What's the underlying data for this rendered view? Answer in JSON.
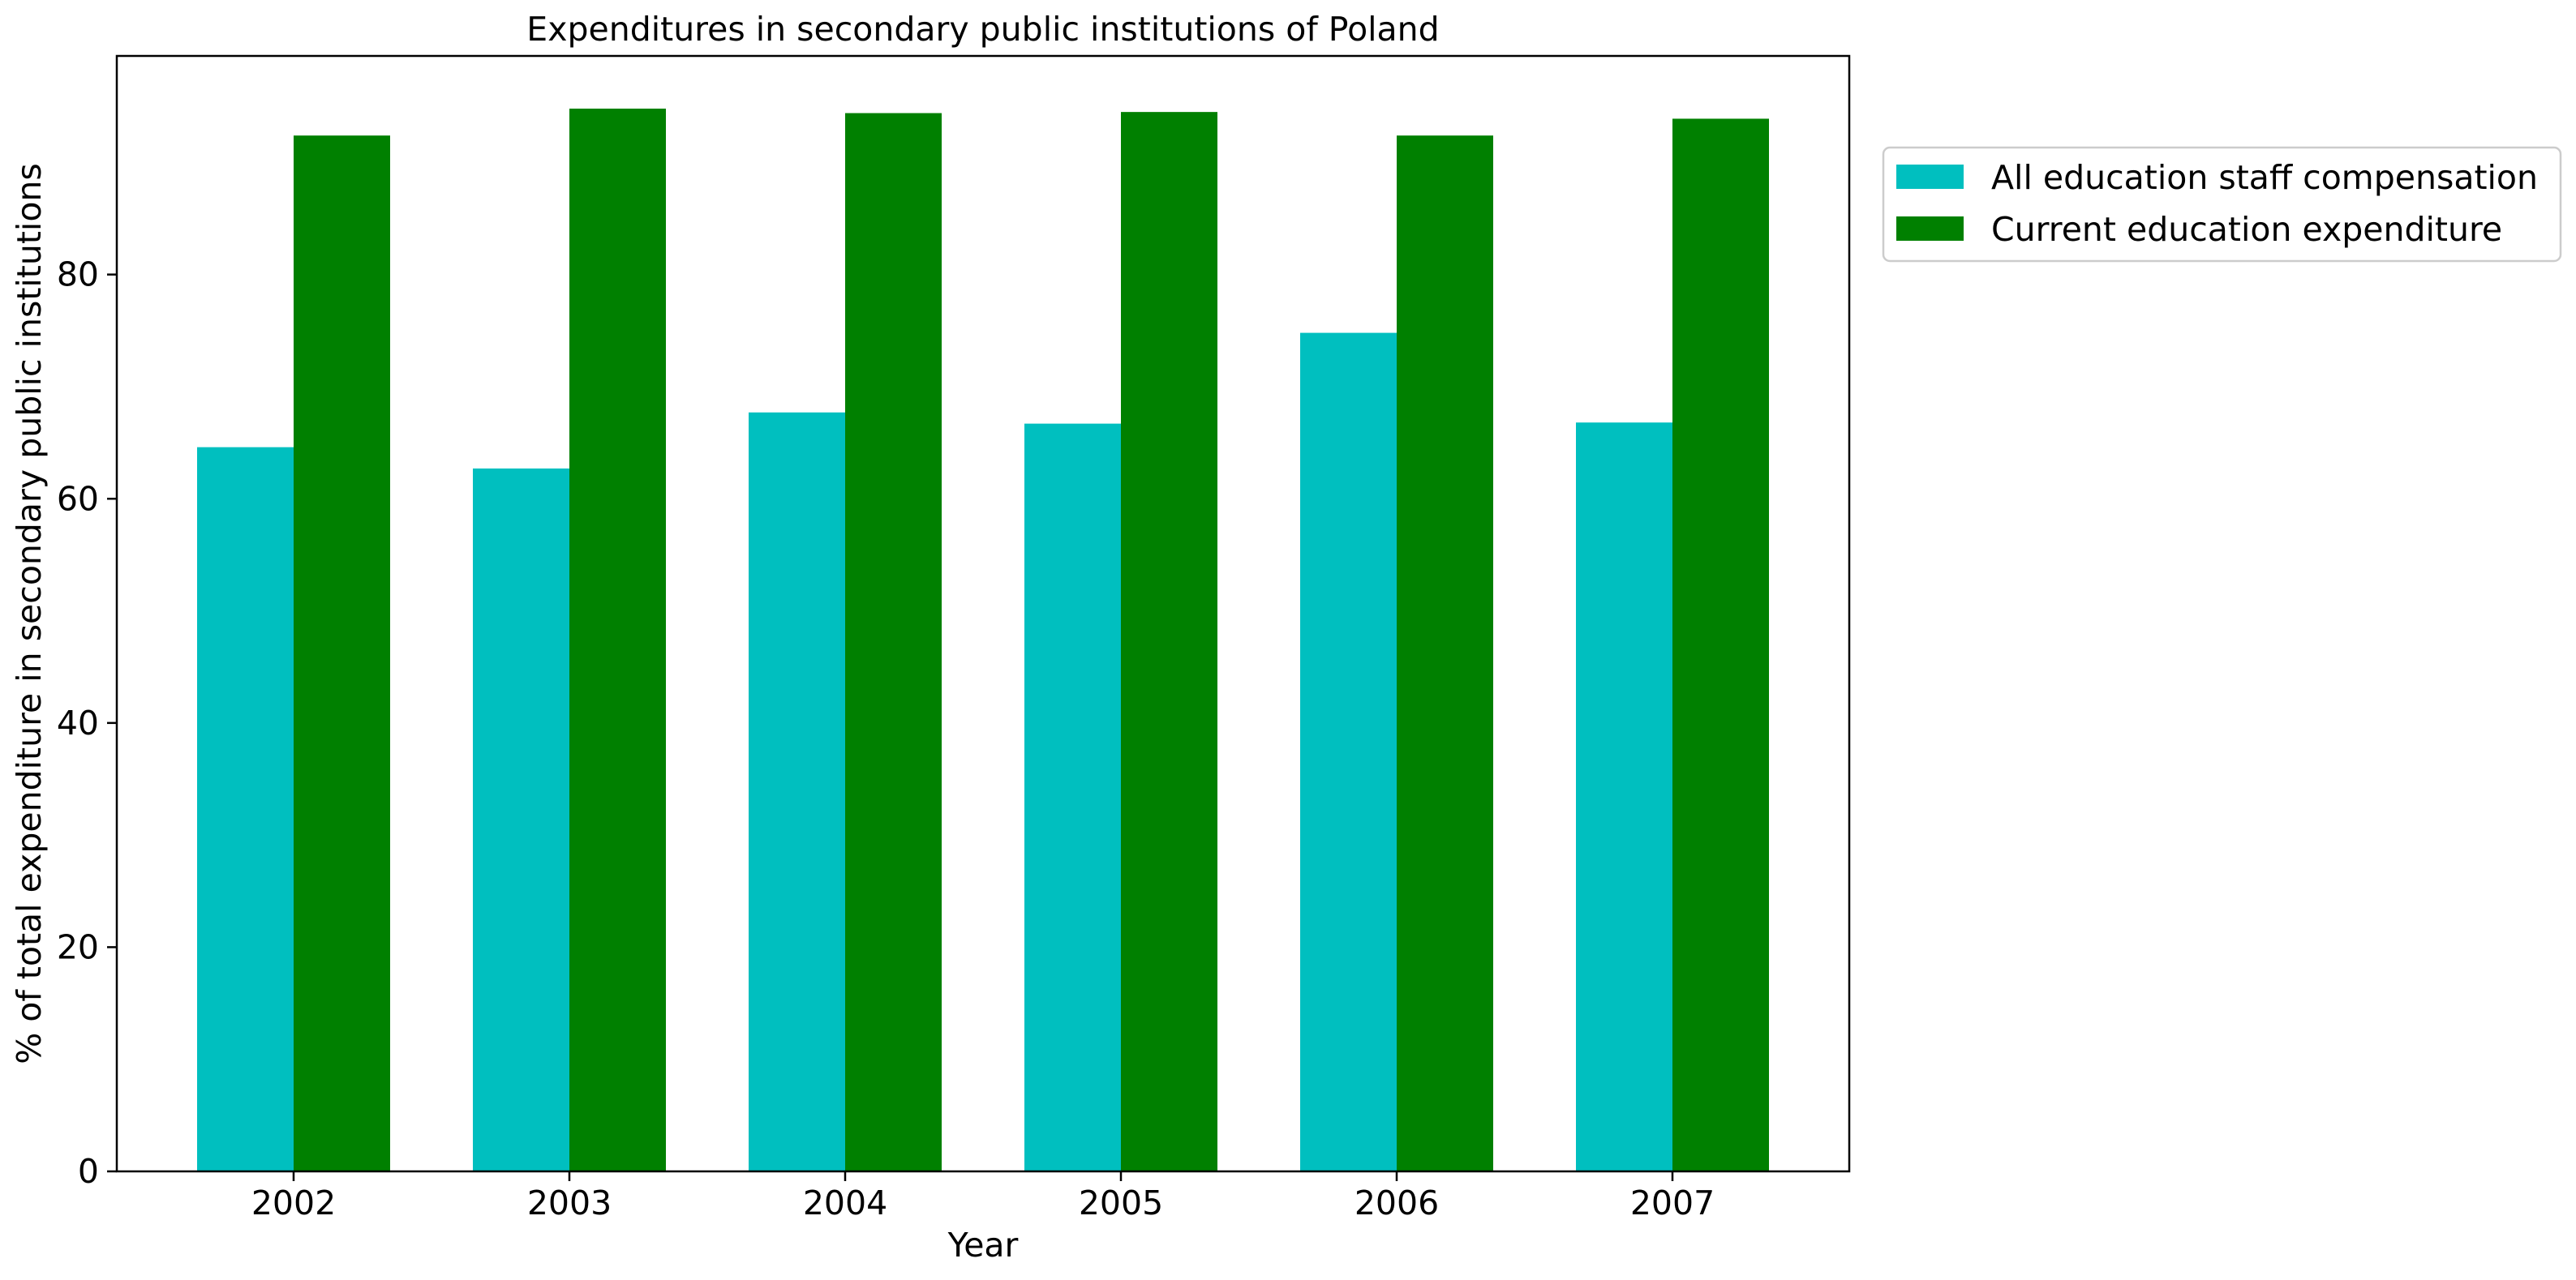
{
  "chart_data": {
    "type": "bar",
    "title": "Expenditures in secondary public institutions of Poland",
    "xlabel": "Year",
    "ylabel": "% of total expenditure in secondary public institutions",
    "categories": [
      "2002",
      "2003",
      "2004",
      "2005",
      "2006",
      "2007"
    ],
    "series": [
      {
        "name": "All education staff compensation",
        "color": "#00bfbf",
        "values": [
          64.6,
          62.7,
          67.7,
          66.7,
          74.8,
          66.8
        ]
      },
      {
        "name": "Current education expenditure",
        "color": "#008000",
        "values": [
          92.4,
          94.8,
          94.4,
          94.5,
          92.4,
          93.9
        ]
      }
    ],
    "ylim": [
      0,
      99.5
    ],
    "yticks": [
      0,
      20,
      40,
      60,
      80
    ],
    "grid": false,
    "legend_position": "outside-top-right"
  }
}
